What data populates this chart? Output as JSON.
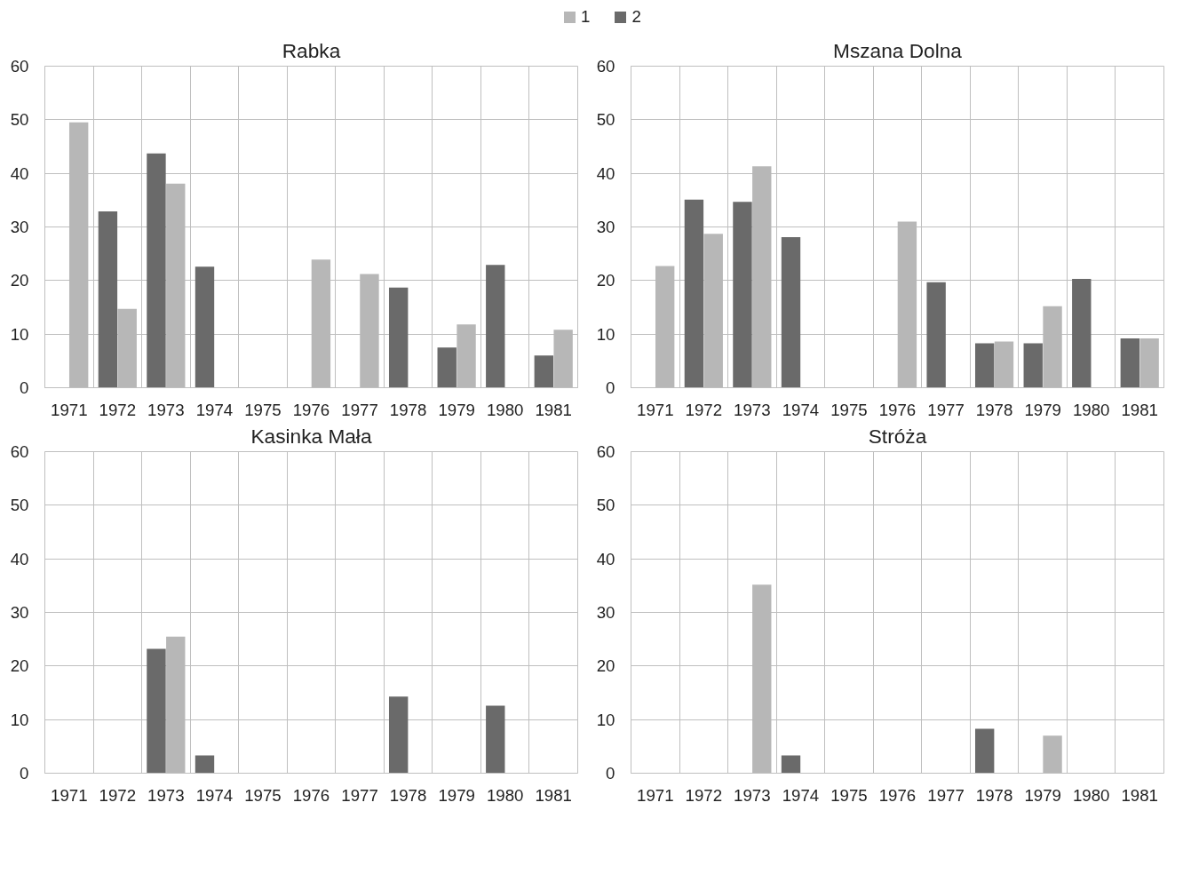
{
  "chart_data": [
    {
      "type": "bar",
      "title": "Rabka",
      "categories": [
        "1971",
        "1972",
        "1973",
        "1974",
        "1975",
        "1976",
        "1977",
        "1978",
        "1979",
        "1980",
        "1981"
      ],
      "ylim": [
        0,
        60
      ],
      "yticks": [
        0,
        10,
        20,
        30,
        40,
        50,
        60
      ],
      "grid": true,
      "legend": "top right",
      "series": [
        {
          "name": "1",
          "color": "#b7b7b7",
          "values": [
            49.5,
            14.7,
            38.1,
            null,
            null,
            23.9,
            21.2,
            null,
            11.8,
            null,
            10.8
          ]
        },
        {
          "name": "2",
          "color": "#6a6a6a",
          "values": [
            null,
            32.9,
            43.7,
            22.6,
            null,
            null,
            null,
            18.7,
            7.5,
            22.9,
            6.0
          ]
        }
      ]
    },
    {
      "type": "bar",
      "title": "Mszana Dolna",
      "categories": [
        "1971",
        "1972",
        "1973",
        "1974",
        "1975",
        "1976",
        "1977",
        "1978",
        "1979",
        "1980",
        "1981"
      ],
      "ylim": [
        0,
        60
      ],
      "yticks": [
        0,
        10,
        20,
        30,
        40,
        50,
        60
      ],
      "grid": true,
      "series": [
        {
          "color": "#b7b7b7",
          "values": [
            22.7,
            28.7,
            41.3,
            null,
            null,
            31.0,
            null,
            8.6,
            15.2,
            null,
            9.2
          ]
        },
        {
          "color": "#6a6a6a",
          "values": [
            null,
            35.1,
            34.7,
            28.1,
            null,
            null,
            19.7,
            8.3,
            8.3,
            20.3,
            9.2
          ]
        }
      ]
    },
    {
      "type": "bar",
      "title": "Kasinka Mała",
      "categories": [
        "1971",
        "1972",
        "1973",
        "1974",
        "1975",
        "1976",
        "1977",
        "1978",
        "1979",
        "1980",
        "1981"
      ],
      "ylim": [
        0,
        60
      ],
      "yticks": [
        0,
        10,
        20,
        30,
        40,
        50,
        60
      ],
      "grid": true,
      "series": [
        {
          "color": "#b7b7b7",
          "values": [
            null,
            null,
            25.5,
            null,
            null,
            null,
            null,
            null,
            null,
            null,
            null
          ]
        },
        {
          "color": "#6a6a6a",
          "values": [
            null,
            null,
            23.2,
            3.3,
            null,
            null,
            null,
            14.3,
            null,
            12.6,
            null
          ]
        }
      ]
    },
    {
      "type": "bar",
      "title": "Stróża",
      "categories": [
        "1971",
        "1972",
        "1973",
        "1974",
        "1975",
        "1976",
        "1977",
        "1978",
        "1979",
        "1980",
        "1981"
      ],
      "ylim": [
        0,
        60
      ],
      "yticks": [
        0,
        10,
        20,
        30,
        40,
        50,
        60
      ],
      "grid": true,
      "series": [
        {
          "color": "#b7b7b7",
          "values": [
            null,
            null,
            35.2,
            null,
            null,
            null,
            null,
            null,
            7.0,
            null,
            null
          ]
        },
        {
          "color": "#6a6a6a",
          "values": [
            null,
            null,
            null,
            3.3,
            null,
            null,
            null,
            8.3,
            null,
            null,
            null
          ]
        }
      ]
    }
  ]
}
